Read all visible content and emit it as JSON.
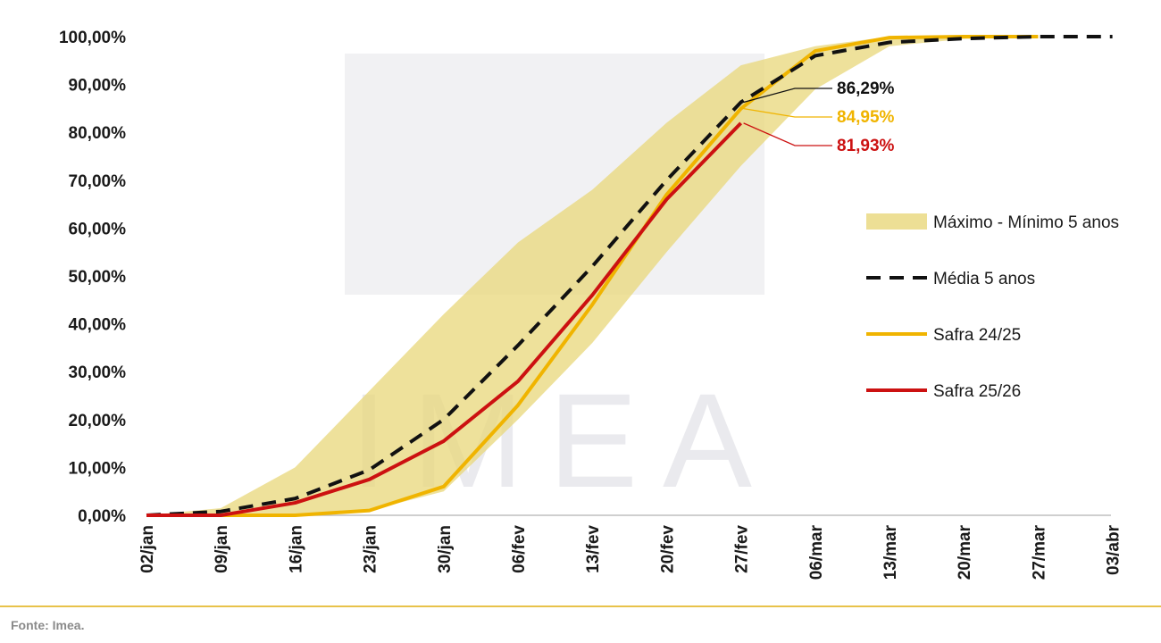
{
  "colors": {
    "band": "#e8d77a",
    "media": "#111111",
    "safra2425": "#f0b400",
    "safra2526": "#cc1111",
    "axis": "#bfbfbf",
    "footer_rule": "#e8c24a",
    "watermark": "#e6e6ea"
  },
  "watermark": {
    "text": "IMEA"
  },
  "chart_data": {
    "type": "line",
    "categories": [
      "02/jan",
      "09/jan",
      "16/jan",
      "23/jan",
      "30/jan",
      "06/fev",
      "13/fev",
      "20/fev",
      "27/fev",
      "06/mar",
      "13/mar",
      "20/mar",
      "27/mar",
      "03/abr"
    ],
    "ylim": [
      0,
      100
    ],
    "yticks": [
      "0,00%",
      "10,00%",
      "20,00%",
      "30,00%",
      "40,00%",
      "50,00%",
      "60,00%",
      "70,00%",
      "80,00%",
      "90,00%",
      "100,00%"
    ],
    "band": {
      "name": "Máximo - Mínimo 5 anos",
      "max": [
        0,
        1.5,
        10,
        26,
        42,
        57,
        68,
        82,
        94,
        98,
        100,
        100,
        100,
        null
      ],
      "min": [
        0,
        0,
        0,
        1,
        5,
        20,
        36,
        55,
        73,
        89,
        98,
        99.5,
        100,
        null
      ]
    },
    "series": [
      {
        "name": "Média 5 anos",
        "key": "media",
        "dashed": true,
        "values": [
          0,
          0.8,
          3.5,
          9.5,
          20,
          35.5,
          52,
          70,
          86.29,
          96,
          98.8,
          99.6,
          100,
          100
        ]
      },
      {
        "name": "Safra 24/25",
        "key": "safra2425",
        "dashed": false,
        "values": [
          0,
          0,
          0,
          1,
          6,
          23,
          44,
          67,
          84.95,
          97,
          99.8,
          100,
          100,
          null
        ]
      },
      {
        "name": "Safra 25/26",
        "key": "safra2526",
        "dashed": false,
        "values": [
          0,
          0,
          2.6,
          7.5,
          15.5,
          28,
          46,
          66,
          81.93,
          null,
          null,
          null,
          null,
          null
        ]
      }
    ],
    "annotations": [
      {
        "label": "86,29%",
        "key": "media"
      },
      {
        "label": "84,95%",
        "key": "safra2425"
      },
      {
        "label": "81,93%",
        "key": "safra2526"
      }
    ],
    "legend": [
      {
        "label": "Máximo - Mínimo 5 anos",
        "kind": "band"
      },
      {
        "label": "Média 5 anos",
        "kind": "media"
      },
      {
        "label": "Safra 24/25",
        "kind": "safra2425"
      },
      {
        "label": "Safra 25/26",
        "kind": "safra2526"
      }
    ],
    "legend_position": "right"
  },
  "source": "Fonte: Imea."
}
